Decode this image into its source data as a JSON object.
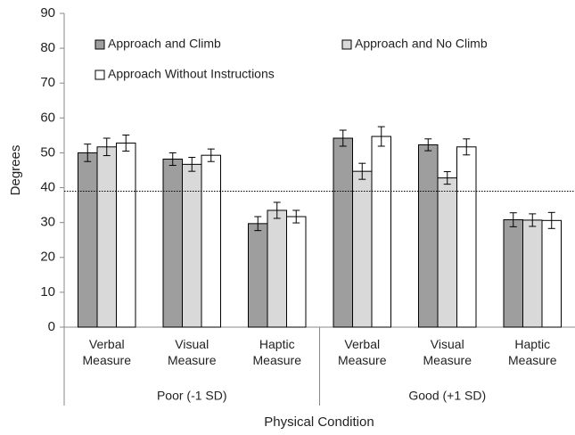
{
  "chart_data": {
    "type": "bar",
    "y_label": "Degrees",
    "x_label": "Physical Condition",
    "categories": [
      "Verbal Measure",
      "Visual Measure",
      "Haptic Measure",
      "Verbal Measure",
      "Visual Measure",
      "Haptic Measure"
    ],
    "groups": [
      "Poor (-1 SD)",
      "Good (+1 SD)"
    ],
    "series": [
      {
        "name": "Approach and Climb",
        "color": "#9e9e9e",
        "values": [
          50,
          48.2,
          29.7,
          54.2,
          52.3,
          30.8
        ],
        "errors": [
          2.5,
          1.8,
          2,
          2.3,
          1.7,
          2
        ]
      },
      {
        "name": "Approach and No Climb",
        "color": "#d9d9d9",
        "values": [
          51.7,
          46.7,
          33.5,
          44.7,
          42.8,
          30.7
        ],
        "errors": [
          2.5,
          2,
          2.3,
          2.3,
          1.8,
          1.8
        ]
      },
      {
        "name": "Approach Without Instructions",
        "color": "#ffffff",
        "values": [
          52.8,
          49.3,
          31.7,
          54.7,
          51.7,
          30.6
        ],
        "errors": [
          2.3,
          1.8,
          1.8,
          2.8,
          2.3,
          2.3
        ]
      }
    ],
    "reference_line": 39,
    "ylim": [
      0,
      90
    ],
    "yticks": [
      0,
      10,
      20,
      30,
      40,
      50,
      60,
      70,
      80,
      90
    ],
    "legend": "top-left",
    "grid": false
  }
}
